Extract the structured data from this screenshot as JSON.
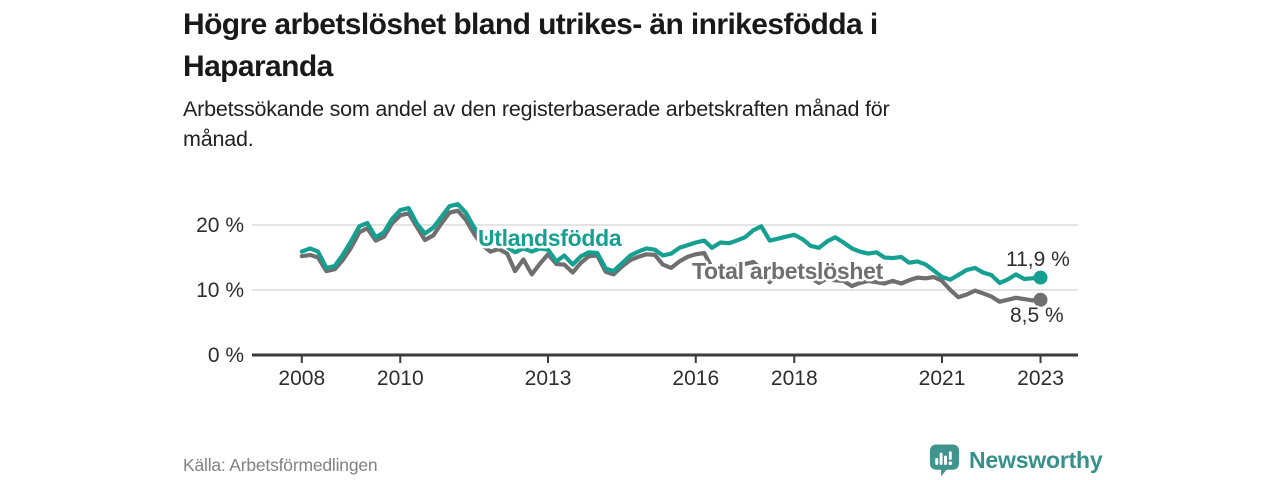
{
  "chart_data": {
    "type": "line",
    "title": "Högre arbetslöshet bland utrikes- än inrikesfödda i Haparanda",
    "title_lines": [
      "Högre arbetslöshet bland utrikes- än inrikesfödda i",
      "Haparanda"
    ],
    "subtitle": "Arbetssökande som andel av den registerbaserade arbetskraften månad för månad.",
    "subtitle_lines": [
      "Arbetssökande som andel av den registerbaserade arbetskraften månad för",
      "månad."
    ],
    "source": "Källa: Arbetsförmedlingen",
    "unit": "%",
    "grid": "horizontal-only",
    "legend_position": "inline-labels",
    "x_range": [
      2007.05,
      2023.7
    ],
    "ylim": [
      0,
      24
    ],
    "x_ticks": [
      2008,
      2010,
      2013,
      2016,
      2018,
      2021,
      2023
    ],
    "y_ticks": [
      {
        "value": 0,
        "label": "0 %"
      },
      {
        "value": 10,
        "label": "10 %"
      },
      {
        "value": 20,
        "label": "20 %"
      }
    ],
    "series": [
      {
        "name": "Utlandsfödda",
        "color": "#16a091",
        "end_label": "11,9 %",
        "end_value": 11.9,
        "points": [
          [
            2008.0,
            15.9
          ],
          [
            2008.17,
            16.4
          ],
          [
            2008.33,
            15.9
          ],
          [
            2008.5,
            13.4
          ],
          [
            2008.67,
            13.7
          ],
          [
            2008.83,
            15.4
          ],
          [
            2009.0,
            17.5
          ],
          [
            2009.17,
            19.8
          ],
          [
            2009.33,
            20.3
          ],
          [
            2009.5,
            18.1
          ],
          [
            2009.67,
            18.9
          ],
          [
            2009.83,
            20.9
          ],
          [
            2010.0,
            22.3
          ],
          [
            2010.17,
            22.6
          ],
          [
            2010.33,
            20.3
          ],
          [
            2010.5,
            18.7
          ],
          [
            2010.67,
            19.6
          ],
          [
            2010.83,
            21.2
          ],
          [
            2011.0,
            22.9
          ],
          [
            2011.17,
            23.2
          ],
          [
            2011.33,
            21.9
          ],
          [
            2011.5,
            19.6
          ],
          [
            2011.67,
            18.1
          ],
          [
            2011.83,
            17.9
          ],
          [
            2012.0,
            17.4
          ],
          [
            2012.17,
            16.6
          ],
          [
            2012.33,
            15.8
          ],
          [
            2012.5,
            16.4
          ],
          [
            2012.67,
            15.9
          ],
          [
            2012.83,
            16.4
          ],
          [
            2013.0,
            16.2
          ],
          [
            2013.17,
            14.4
          ],
          [
            2013.33,
            15.3
          ],
          [
            2013.5,
            13.9
          ],
          [
            2013.67,
            15.2
          ],
          [
            2013.83,
            15.8
          ],
          [
            2014.0,
            15.7
          ],
          [
            2014.17,
            13.3
          ],
          [
            2014.33,
            12.9
          ],
          [
            2014.5,
            14.1
          ],
          [
            2014.67,
            15.3
          ],
          [
            2014.83,
            15.9
          ],
          [
            2015.0,
            16.4
          ],
          [
            2015.17,
            16.2
          ],
          [
            2015.33,
            15.3
          ],
          [
            2015.5,
            15.6
          ],
          [
            2015.67,
            16.5
          ],
          [
            2015.83,
            16.9
          ],
          [
            2016.0,
            17.3
          ],
          [
            2016.17,
            17.6
          ],
          [
            2016.33,
            16.5
          ],
          [
            2016.5,
            17.3
          ],
          [
            2016.67,
            17.2
          ],
          [
            2016.83,
            17.6
          ],
          [
            2017.0,
            18.1
          ],
          [
            2017.17,
            19.2
          ],
          [
            2017.33,
            19.8
          ],
          [
            2017.5,
            17.6
          ],
          [
            2017.67,
            17.9
          ],
          [
            2017.83,
            18.2
          ],
          [
            2018.0,
            18.5
          ],
          [
            2018.17,
            17.8
          ],
          [
            2018.33,
            16.8
          ],
          [
            2018.5,
            16.5
          ],
          [
            2018.67,
            17.5
          ],
          [
            2018.83,
            18.1
          ],
          [
            2019.0,
            17.3
          ],
          [
            2019.17,
            16.4
          ],
          [
            2019.33,
            15.9
          ],
          [
            2019.5,
            15.6
          ],
          [
            2019.67,
            15.8
          ],
          [
            2019.83,
            15.0
          ],
          [
            2020.0,
            14.9
          ],
          [
            2020.17,
            15.1
          ],
          [
            2020.33,
            14.2
          ],
          [
            2020.5,
            14.4
          ],
          [
            2020.67,
            13.9
          ],
          [
            2020.83,
            13.0
          ],
          [
            2021.0,
            12.0
          ],
          [
            2021.17,
            11.6
          ],
          [
            2021.33,
            12.3
          ],
          [
            2021.5,
            13.1
          ],
          [
            2021.67,
            13.4
          ],
          [
            2021.83,
            12.7
          ],
          [
            2022.0,
            12.3
          ],
          [
            2022.17,
            11.1
          ],
          [
            2022.33,
            11.6
          ],
          [
            2022.5,
            12.4
          ],
          [
            2022.67,
            11.7
          ],
          [
            2022.83,
            11.8
          ],
          [
            2023.0,
            11.9
          ]
        ]
      },
      {
        "name": "Total arbetslöshet",
        "color": "#6f6f6f",
        "end_label": "8,5 %",
        "end_value": 8.5,
        "points": [
          [
            2008.0,
            15.2
          ],
          [
            2008.17,
            15.4
          ],
          [
            2008.33,
            15.0
          ],
          [
            2008.5,
            12.9
          ],
          [
            2008.67,
            13.2
          ],
          [
            2008.83,
            14.6
          ],
          [
            2009.0,
            16.5
          ],
          [
            2009.17,
            18.9
          ],
          [
            2009.33,
            19.5
          ],
          [
            2009.5,
            17.6
          ],
          [
            2009.67,
            18.2
          ],
          [
            2009.83,
            20.2
          ],
          [
            2010.0,
            21.5
          ],
          [
            2010.17,
            21.8
          ],
          [
            2010.33,
            19.8
          ],
          [
            2010.5,
            17.7
          ],
          [
            2010.67,
            18.4
          ],
          [
            2010.83,
            20.2
          ],
          [
            2011.0,
            21.9
          ],
          [
            2011.17,
            22.2
          ],
          [
            2011.33,
            20.8
          ],
          [
            2011.5,
            18.6
          ],
          [
            2011.67,
            16.9
          ],
          [
            2011.83,
            15.9
          ],
          [
            2012.0,
            16.3
          ],
          [
            2012.17,
            15.6
          ],
          [
            2012.33,
            12.9
          ],
          [
            2012.5,
            14.7
          ],
          [
            2012.67,
            12.4
          ],
          [
            2012.83,
            14.0
          ],
          [
            2013.0,
            15.5
          ],
          [
            2013.17,
            14.0
          ],
          [
            2013.33,
            13.9
          ],
          [
            2013.5,
            12.7
          ],
          [
            2013.67,
            14.2
          ],
          [
            2013.83,
            15.2
          ],
          [
            2014.0,
            15.3
          ],
          [
            2014.17,
            12.8
          ],
          [
            2014.33,
            12.4
          ],
          [
            2014.5,
            13.6
          ],
          [
            2014.67,
            14.6
          ],
          [
            2014.83,
            15.1
          ],
          [
            2015.0,
            15.5
          ],
          [
            2015.17,
            15.4
          ],
          [
            2015.33,
            13.9
          ],
          [
            2015.5,
            13.4
          ],
          [
            2015.67,
            14.4
          ],
          [
            2015.83,
            15.1
          ],
          [
            2016.0,
            15.5
          ],
          [
            2016.17,
            15.7
          ],
          [
            2016.33,
            13.4
          ],
          [
            2016.5,
            13.0
          ],
          [
            2016.67,
            13.3
          ],
          [
            2016.83,
            13.6
          ],
          [
            2017.0,
            14.0
          ],
          [
            2017.17,
            14.3
          ],
          [
            2017.33,
            13.2
          ],
          [
            2017.5,
            11.2
          ],
          [
            2017.67,
            12.6
          ],
          [
            2017.83,
            13.0
          ],
          [
            2018.0,
            13.3
          ],
          [
            2018.17,
            12.9
          ],
          [
            2018.33,
            11.9
          ],
          [
            2018.5,
            11.1
          ],
          [
            2018.67,
            11.8
          ],
          [
            2018.83,
            11.5
          ],
          [
            2019.0,
            11.4
          ],
          [
            2019.17,
            10.6
          ],
          [
            2019.33,
            11.1
          ],
          [
            2019.5,
            11.4
          ],
          [
            2019.67,
            11.2
          ],
          [
            2019.83,
            11.0
          ],
          [
            2020.0,
            11.4
          ],
          [
            2020.17,
            11.0
          ],
          [
            2020.33,
            11.5
          ],
          [
            2020.5,
            11.9
          ],
          [
            2020.67,
            11.8
          ],
          [
            2020.83,
            12.0
          ],
          [
            2021.0,
            11.4
          ],
          [
            2021.17,
            10.0
          ],
          [
            2021.33,
            8.9
          ],
          [
            2021.5,
            9.3
          ],
          [
            2021.67,
            9.9
          ],
          [
            2021.83,
            9.5
          ],
          [
            2022.0,
            9.0
          ],
          [
            2022.17,
            8.2
          ],
          [
            2022.33,
            8.5
          ],
          [
            2022.5,
            8.8
          ],
          [
            2022.67,
            8.6
          ],
          [
            2022.83,
            8.4
          ],
          [
            2023.0,
            8.5
          ]
        ]
      }
    ]
  },
  "footer": {
    "brand": "Newsworthy",
    "brand_icon": "newsworthy-speech-bubble-bar-chart-icon"
  },
  "colors": {
    "foreign_born_line": "#16a091",
    "total_line": "#6f6f6f",
    "grid": "#dcdcdc",
    "axis": "#3b3b3b",
    "tick_text": "#2e2e2e",
    "brand_teal": "#37918b"
  }
}
